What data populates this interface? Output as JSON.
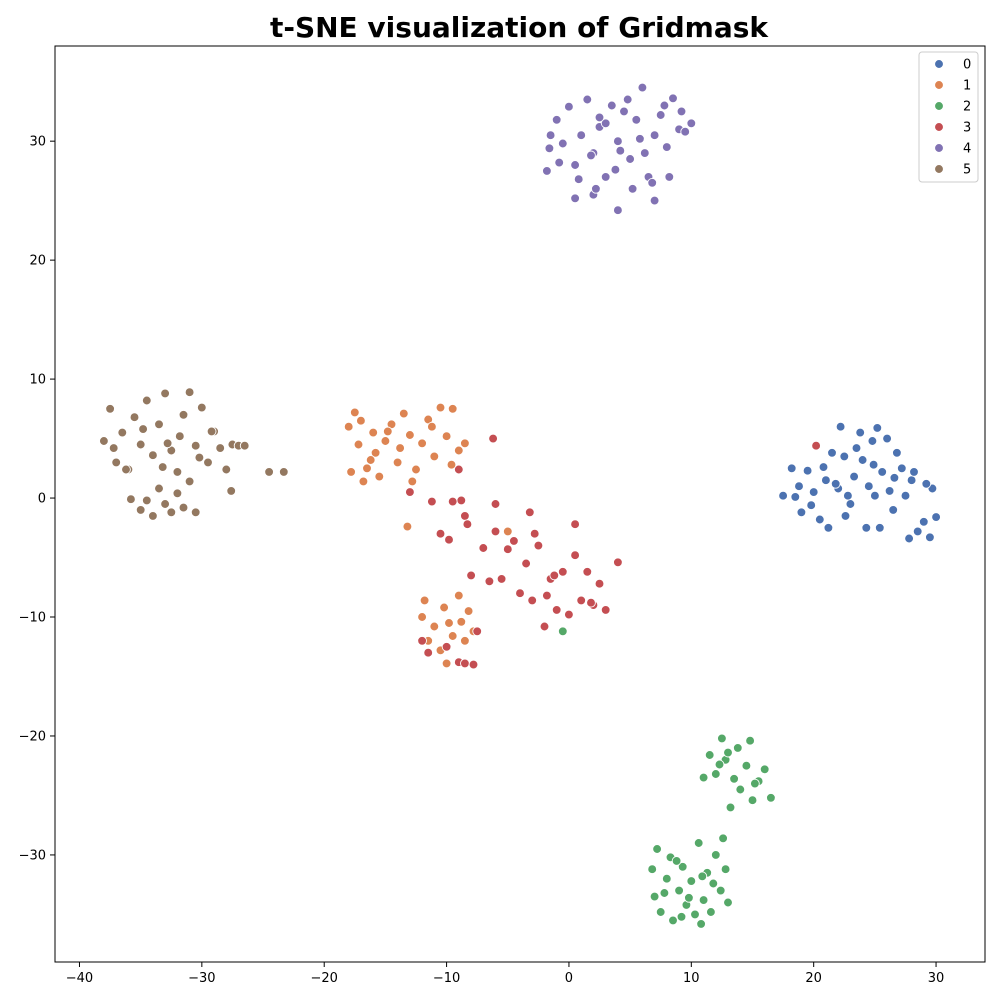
{
  "chart_data": {
    "type": "scatter",
    "title": "t-SNE visualization of Gridmask",
    "xlabel": "",
    "ylabel": "",
    "xlim": [
      -42,
      34
    ],
    "ylim": [
      -39,
      38
    ],
    "xticks": [
      -40,
      -30,
      -20,
      -10,
      0,
      10,
      20,
      30
    ],
    "yticks": [
      -30,
      -20,
      -10,
      0,
      10,
      20,
      30
    ],
    "xtick_labels": [
      "−40",
      "−30",
      "−20",
      "−10",
      "0",
      "10",
      "20",
      "30"
    ],
    "ytick_labels": [
      "−30",
      "−20",
      "−10",
      "0",
      "10",
      "20",
      "30"
    ],
    "grid": false,
    "legend": {
      "position": "top-right",
      "entries": [
        "0",
        "1",
        "2",
        "3",
        "4",
        "5"
      ]
    },
    "colors": {
      "0": "#4c72b0",
      "1": "#dd8452",
      "2": "#55a868",
      "3": "#c44e52",
      "4": "#8172b3",
      "5": "#937860"
    },
    "series": [
      {
        "name": "0",
        "points": [
          [
            17.5,
            0.2
          ],
          [
            18.2,
            2.5
          ],
          [
            18.8,
            1.0
          ],
          [
            19.5,
            2.3
          ],
          [
            20.0,
            0.5
          ],
          [
            20.5,
            -1.8
          ],
          [
            21.0,
            1.5
          ],
          [
            21.5,
            3.8
          ],
          [
            22.0,
            0.8
          ],
          [
            22.2,
            6.0
          ],
          [
            22.5,
            3.5
          ],
          [
            23.0,
            -0.5
          ],
          [
            23.3,
            1.8
          ],
          [
            23.8,
            5.5
          ],
          [
            24.0,
            3.2
          ],
          [
            24.3,
            -2.5
          ],
          [
            24.8,
            4.8
          ],
          [
            25.0,
            0.2
          ],
          [
            25.2,
            5.9
          ],
          [
            25.6,
            2.2
          ],
          [
            26.0,
            5.0
          ],
          [
            26.5,
            -1.0
          ],
          [
            26.8,
            3.8
          ],
          [
            27.2,
            2.5
          ],
          [
            27.5,
            0.2
          ],
          [
            28.0,
            1.5
          ],
          [
            28.5,
            -2.8
          ],
          [
            29.0,
            -2.0
          ],
          [
            29.5,
            -3.3
          ],
          [
            29.7,
            0.8
          ],
          [
            30.0,
            -1.6
          ],
          [
            19.0,
            -1.2
          ],
          [
            21.2,
            -2.5
          ],
          [
            22.8,
            0.2
          ],
          [
            24.5,
            1.0
          ],
          [
            26.2,
            0.6
          ],
          [
            27.8,
            -3.4
          ],
          [
            20.8,
            2.6
          ],
          [
            23.5,
            4.2
          ],
          [
            25.4,
            -2.5
          ],
          [
            18.5,
            0.1
          ],
          [
            22.6,
            -1.5
          ],
          [
            28.2,
            2.2
          ],
          [
            29.2,
            1.2
          ],
          [
            21.8,
            1.2
          ],
          [
            24.9,
            2.8
          ],
          [
            19.8,
            -0.6
          ],
          [
            26.6,
            1.7
          ]
        ]
      },
      {
        "name": "1",
        "points": [
          [
            -18.0,
            6.0
          ],
          [
            -17.5,
            7.2
          ],
          [
            -17.2,
            4.5
          ],
          [
            -16.5,
            2.5
          ],
          [
            -16.0,
            5.5
          ],
          [
            -15.5,
            1.8
          ],
          [
            -15.0,
            4.8
          ],
          [
            -14.5,
            6.2
          ],
          [
            -14.0,
            3.0
          ],
          [
            -13.5,
            7.1
          ],
          [
            -13.0,
            5.3
          ],
          [
            -12.5,
            2.4
          ],
          [
            -12.0,
            4.6
          ],
          [
            -11.5,
            6.6
          ],
          [
            -11.0,
            3.5
          ],
          [
            -10.5,
            7.6
          ],
          [
            -10.0,
            5.2
          ],
          [
            -9.5,
            7.5
          ],
          [
            -9.0,
            4.0
          ],
          [
            -8.5,
            4.6
          ],
          [
            -17.8,
            2.2
          ],
          [
            -16.8,
            1.4
          ],
          [
            -15.8,
            3.8
          ],
          [
            -13.2,
            -2.4
          ],
          [
            -12.0,
            -10.0
          ],
          [
            -11.5,
            -12.0
          ],
          [
            -11.0,
            -10.8
          ],
          [
            -10.5,
            -12.8
          ],
          [
            -10.2,
            -9.2
          ],
          [
            -10.0,
            -13.9
          ],
          [
            -9.8,
            -10.5
          ],
          [
            -9.5,
            -11.6
          ],
          [
            -9.0,
            -8.2
          ],
          [
            -8.8,
            -10.4
          ],
          [
            -8.5,
            -12.0
          ],
          [
            -8.2,
            -9.5
          ],
          [
            -7.8,
            -11.2
          ],
          [
            -11.8,
            -8.6
          ],
          [
            -5.0,
            -2.8
          ],
          [
            -16.2,
            3.2
          ],
          [
            -14.8,
            5.6
          ],
          [
            -12.8,
            1.4
          ],
          [
            -11.2,
            6.0
          ],
          [
            -9.6,
            2.8
          ],
          [
            -17.0,
            6.5
          ],
          [
            -13.8,
            4.2
          ]
        ]
      },
      {
        "name": "2",
        "points": [
          [
            12.5,
            -20.2
          ],
          [
            12.8,
            -22.0
          ],
          [
            13.0,
            -21.4
          ],
          [
            13.5,
            -23.6
          ],
          [
            13.8,
            -21.0
          ],
          [
            14.0,
            -24.5
          ],
          [
            14.5,
            -22.5
          ],
          [
            14.8,
            -20.4
          ],
          [
            15.0,
            -25.4
          ],
          [
            15.5,
            -23.8
          ],
          [
            16.0,
            -22.8
          ],
          [
            16.5,
            -25.2
          ],
          [
            11.5,
            -21.6
          ],
          [
            12.0,
            -23.2
          ],
          [
            11.0,
            -23.5
          ],
          [
            13.2,
            -26.0
          ],
          [
            15.2,
            -24.0
          ],
          [
            12.3,
            -22.4
          ],
          [
            -0.5,
            -11.2
          ],
          [
            6.8,
            -31.2
          ],
          [
            7.0,
            -33.5
          ],
          [
            7.2,
            -29.5
          ],
          [
            7.5,
            -34.8
          ],
          [
            8.0,
            -32.0
          ],
          [
            8.3,
            -30.2
          ],
          [
            8.5,
            -35.5
          ],
          [
            9.0,
            -33.0
          ],
          [
            9.3,
            -31.0
          ],
          [
            9.6,
            -34.2
          ],
          [
            10.0,
            -32.2
          ],
          [
            10.3,
            -35.0
          ],
          [
            10.6,
            -29.0
          ],
          [
            11.0,
            -33.8
          ],
          [
            11.3,
            -31.5
          ],
          [
            11.6,
            -34.8
          ],
          [
            12.0,
            -30.0
          ],
          [
            12.4,
            -33.0
          ],
          [
            12.8,
            -31.2
          ],
          [
            13.0,
            -34.0
          ],
          [
            10.8,
            -35.8
          ],
          [
            8.8,
            -30.5
          ],
          [
            9.8,
            -33.6
          ],
          [
            11.8,
            -32.4
          ],
          [
            7.8,
            -33.2
          ],
          [
            12.6,
            -28.6
          ],
          [
            9.2,
            -35.2
          ],
          [
            10.9,
            -31.8
          ]
        ]
      },
      {
        "name": "3",
        "points": [
          [
            20.2,
            4.4
          ],
          [
            -6.2,
            5.0
          ],
          [
            -9.0,
            2.4
          ],
          [
            -13.0,
            0.5
          ],
          [
            -11.2,
            -0.3
          ],
          [
            -10.5,
            -3.0
          ],
          [
            -9.8,
            -3.5
          ],
          [
            -8.5,
            -1.5
          ],
          [
            -8.3,
            -2.2
          ],
          [
            -8.0,
            -6.5
          ],
          [
            -7.0,
            -4.2
          ],
          [
            -6.5,
            -7.0
          ],
          [
            -6.0,
            -2.8
          ],
          [
            -5.5,
            -6.8
          ],
          [
            -5.0,
            -4.3
          ],
          [
            -4.5,
            -3.6
          ],
          [
            -4.0,
            -8.0
          ],
          [
            -3.5,
            -5.5
          ],
          [
            -3.0,
            -8.6
          ],
          [
            -2.5,
            -4.0
          ],
          [
            -2.0,
            -10.8
          ],
          [
            -1.5,
            -6.8
          ],
          [
            -1.0,
            -9.4
          ],
          [
            -0.5,
            -6.2
          ],
          [
            0.0,
            -9.8
          ],
          [
            0.5,
            -4.8
          ],
          [
            1.0,
            -8.6
          ],
          [
            1.5,
            -6.2
          ],
          [
            2.0,
            -9.0
          ],
          [
            2.5,
            -7.2
          ],
          [
            3.0,
            -9.4
          ],
          [
            4.0,
            -5.4
          ],
          [
            0.5,
            -2.2
          ],
          [
            -3.2,
            -1.2
          ],
          [
            -2.8,
            -3.0
          ],
          [
            -1.2,
            -6.5
          ],
          [
            -12.0,
            -12.0
          ],
          [
            -11.5,
            -13.0
          ],
          [
            -10.0,
            -12.5
          ],
          [
            -9.0,
            -13.8
          ],
          [
            -8.5,
            -13.9
          ],
          [
            -7.8,
            -14.0
          ],
          [
            -7.5,
            -11.2
          ],
          [
            -8.8,
            -0.2
          ],
          [
            -6.0,
            -0.5
          ],
          [
            -1.8,
            -8.2
          ],
          [
            1.8,
            -8.8
          ],
          [
            -9.5,
            -0.3
          ]
        ]
      },
      {
        "name": "4",
        "points": [
          [
            7.0,
            25.0
          ],
          [
            2.0,
            25.5
          ],
          [
            4.0,
            24.2
          ],
          [
            0.5,
            25.2
          ],
          [
            -1.8,
            27.5
          ],
          [
            -1.5,
            30.5
          ],
          [
            -1.0,
            31.8
          ],
          [
            -0.5,
            29.8
          ],
          [
            0.0,
            32.9
          ],
          [
            0.5,
            28.0
          ],
          [
            1.0,
            30.5
          ],
          [
            1.5,
            33.5
          ],
          [
            2.0,
            29.0
          ],
          [
            2.5,
            31.2
          ],
          [
            3.0,
            27.0
          ],
          [
            3.5,
            33.0
          ],
          [
            4.0,
            30.0
          ],
          [
            4.5,
            32.5
          ],
          [
            5.0,
            28.5
          ],
          [
            5.5,
            31.8
          ],
          [
            6.0,
            34.5
          ],
          [
            6.5,
            27.0
          ],
          [
            7.0,
            30.5
          ],
          [
            7.5,
            32.2
          ],
          [
            8.0,
            29.5
          ],
          [
            8.5,
            33.6
          ],
          [
            9.0,
            31.0
          ],
          [
            9.5,
            30.8
          ],
          [
            10.0,
            31.5
          ],
          [
            6.8,
            26.5
          ],
          [
            5.2,
            26.0
          ],
          [
            3.0,
            31.5
          ],
          [
            1.8,
            28.8
          ],
          [
            4.8,
            33.5
          ],
          [
            -0.8,
            28.2
          ],
          [
            2.5,
            32.0
          ],
          [
            6.2,
            29.0
          ],
          [
            8.2,
            27.0
          ],
          [
            3.8,
            27.6
          ],
          [
            5.8,
            30.2
          ],
          [
            0.8,
            26.8
          ],
          [
            7.8,
            33.0
          ],
          [
            9.2,
            32.5
          ],
          [
            4.2,
            29.2
          ],
          [
            2.2,
            26.0
          ],
          [
            -1.6,
            29.4
          ]
        ]
      },
      {
        "name": "5",
        "points": [
          [
            -38.0,
            4.8
          ],
          [
            -37.5,
            7.5
          ],
          [
            -37.0,
            3.0
          ],
          [
            -36.5,
            5.5
          ],
          [
            -36.0,
            2.4
          ],
          [
            -35.5,
            6.8
          ],
          [
            -35.0,
            4.5
          ],
          [
            -34.5,
            8.2
          ],
          [
            -34.0,
            3.6
          ],
          [
            -33.5,
            6.2
          ],
          [
            -33.0,
            8.8
          ],
          [
            -32.5,
            4.0
          ],
          [
            -32.0,
            2.2
          ],
          [
            -31.5,
            7.0
          ],
          [
            -31.0,
            8.9
          ],
          [
            -30.5,
            4.4
          ],
          [
            -30.0,
            7.6
          ],
          [
            -29.5,
            3.0
          ],
          [
            -29.0,
            5.6
          ],
          [
            -28.5,
            4.2
          ],
          [
            -28.0,
            2.4
          ],
          [
            -27.5,
            4.5
          ],
          [
            -27.0,
            4.4
          ],
          [
            -26.5,
            4.4
          ],
          [
            -24.5,
            2.2
          ],
          [
            -23.3,
            2.2
          ],
          [
            -35.0,
            -1.0
          ],
          [
            -34.5,
            -0.2
          ],
          [
            -34.0,
            -1.5
          ],
          [
            -33.5,
            0.8
          ],
          [
            -33.0,
            -0.5
          ],
          [
            -32.5,
            -1.2
          ],
          [
            -32.0,
            0.4
          ],
          [
            -31.5,
            -0.8
          ],
          [
            -31.0,
            1.4
          ],
          [
            -30.5,
            -1.2
          ],
          [
            -27.6,
            0.6
          ],
          [
            -36.2,
            2.4
          ],
          [
            -34.8,
            5.8
          ],
          [
            -33.2,
            2.6
          ],
          [
            -31.8,
            5.2
          ],
          [
            -30.2,
            3.4
          ],
          [
            -29.2,
            5.6
          ],
          [
            -35.8,
            -0.1
          ],
          [
            -32.8,
            4.6
          ],
          [
            -37.2,
            4.2
          ]
        ]
      }
    ]
  }
}
